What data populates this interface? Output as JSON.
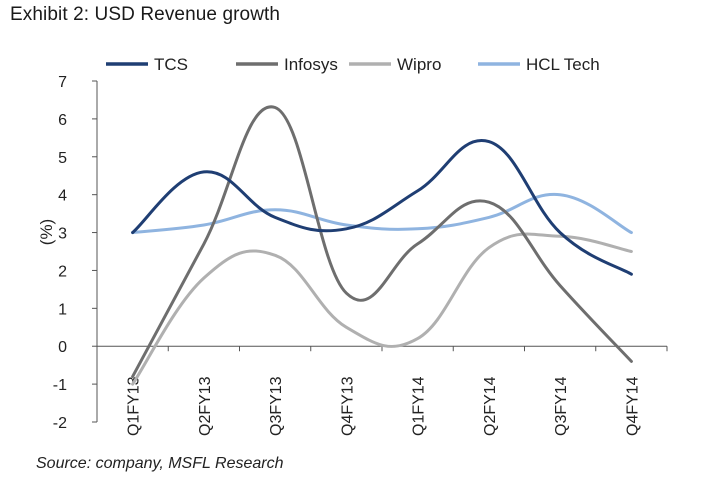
{
  "chart_data": {
    "type": "line",
    "title": "Exhibit 2: USD Revenue growth",
    "ylabel": "(%)",
    "xlabel": "",
    "ylim": [
      -2,
      7
    ],
    "yticks": [
      7,
      6,
      5,
      4,
      3,
      2,
      1,
      0,
      -1,
      -2
    ],
    "categories": [
      "Q1FY13",
      "Q2FY13",
      "Q3FY13",
      "Q4FY13",
      "Q1FY14",
      "Q2FY14",
      "Q3FY14",
      "Q4FY14"
    ],
    "series": [
      {
        "name": "TCS",
        "color": "#1f3e73",
        "values": [
          3.0,
          4.6,
          3.4,
          3.1,
          4.1,
          5.4,
          3.0,
          1.9
        ]
      },
      {
        "name": "Infosys",
        "color": "#6e6e6e",
        "values": [
          -0.8,
          2.7,
          6.3,
          1.4,
          2.7,
          3.8,
          1.6,
          -0.4
        ]
      },
      {
        "name": "Wipro",
        "color": "#b0b0b0",
        "values": [
          -1.0,
          1.8,
          2.4,
          0.5,
          0.2,
          2.6,
          2.9,
          2.5
        ]
      },
      {
        "name": "HCL Tech",
        "color": "#8fb4e0",
        "values": [
          3.0,
          3.2,
          3.6,
          3.2,
          3.1,
          3.4,
          4.0,
          3.0
        ]
      }
    ],
    "legend_position": "top",
    "grid": false,
    "source": "Source: company, MSFL Research"
  }
}
